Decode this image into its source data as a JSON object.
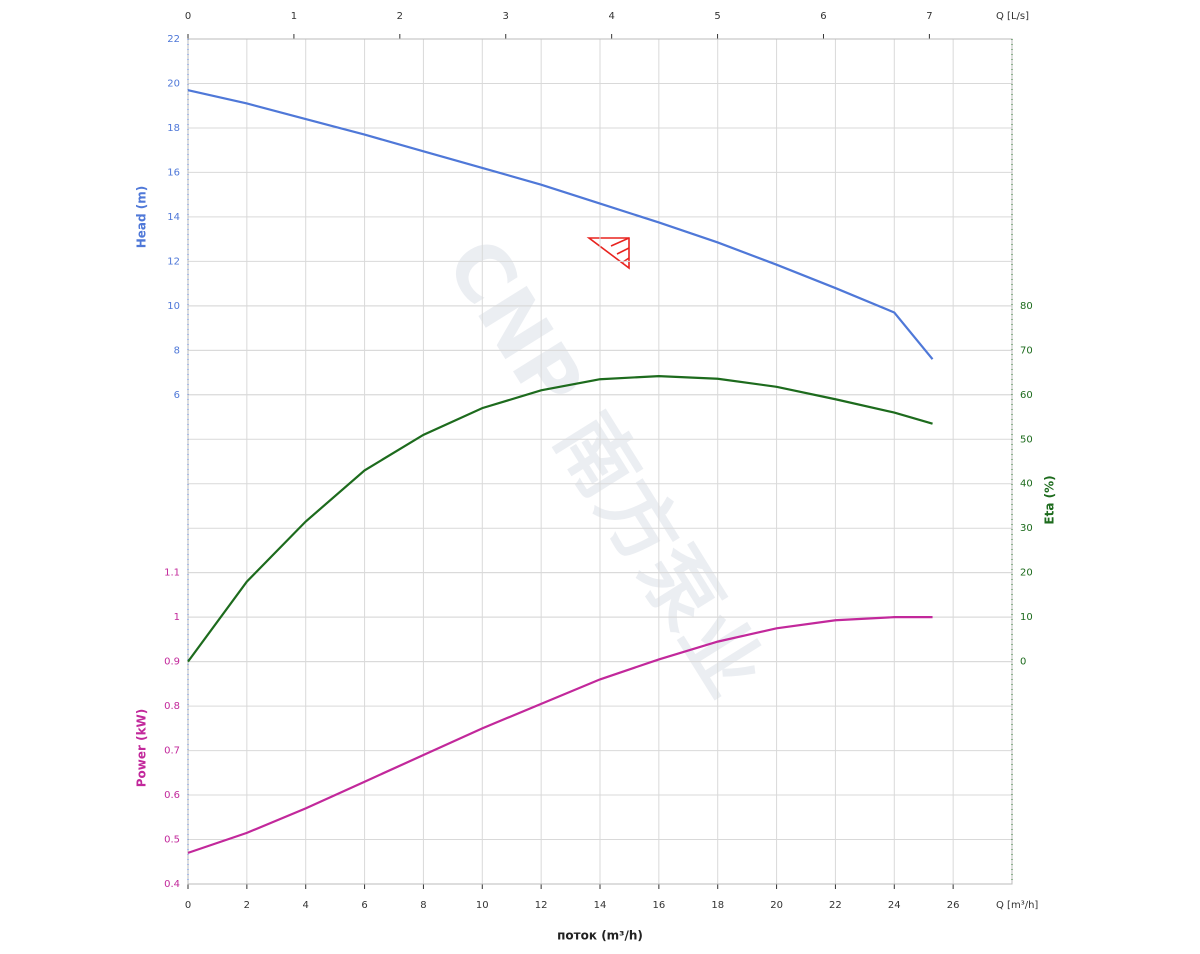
{
  "chart_data": {
    "type": "line",
    "x": [
      0,
      2,
      4,
      6,
      8,
      10,
      12,
      14,
      16,
      18,
      20,
      22,
      24,
      25.3
    ],
    "xlim": [
      0,
      28
    ],
    "xticks": [
      0,
      2,
      4,
      6,
      8,
      10,
      12,
      14,
      16,
      18,
      20,
      22,
      24,
      26
    ],
    "x_unit_label": "Q [m³/h]",
    "x2lim": [
      0,
      7.78
    ],
    "x2ticks": [
      0,
      1,
      2,
      3,
      4,
      5,
      6,
      7
    ],
    "x2_unit_label": "Q [L/s]",
    "xlabel": "поток (m³/h)",
    "ylim": [
      -16,
      22
    ],
    "yticks": [
      6,
      8,
      10,
      12,
      14,
      16,
      18,
      20,
      22
    ],
    "ylabel": "Head (m)",
    "y2lim": [
      -50,
      140
    ],
    "y2ticks": [
      0,
      10,
      20,
      30,
      40,
      50,
      60,
      70,
      80
    ],
    "y2label": "Eta (%)",
    "y3lim": [
      0.4,
      2.3
    ],
    "y3ticks": [
      0.4,
      0.5,
      0.6,
      0.7,
      0.8,
      0.9,
      1,
      1.1
    ],
    "y3label": "Power (kW)",
    "grid": true,
    "watermark": "CNP 南方泵业",
    "series": [
      {
        "name": "Head",
        "color": "#4f78d8",
        "axis": "y",
        "values": [
          19.7,
          19.1,
          18.4,
          17.7,
          16.95,
          16.2,
          15.45,
          14.6,
          13.75,
          12.85,
          11.85,
          10.8,
          9.7,
          7.6
        ]
      },
      {
        "name": "Eta",
        "color": "#1d6b1d",
        "axis": "y2",
        "values": [
          0,
          18,
          31.5,
          43,
          51,
          57,
          61,
          63.5,
          64.2,
          63.6,
          61.8,
          59,
          56,
          53.5
        ]
      },
      {
        "name": "Power",
        "color": "#c2289b",
        "axis": "y3",
        "values": [
          0.47,
          0.515,
          0.57,
          0.63,
          0.69,
          0.75,
          0.805,
          0.86,
          0.905,
          0.945,
          0.975,
          0.993,
          1.0,
          1.0
        ]
      }
    ]
  }
}
